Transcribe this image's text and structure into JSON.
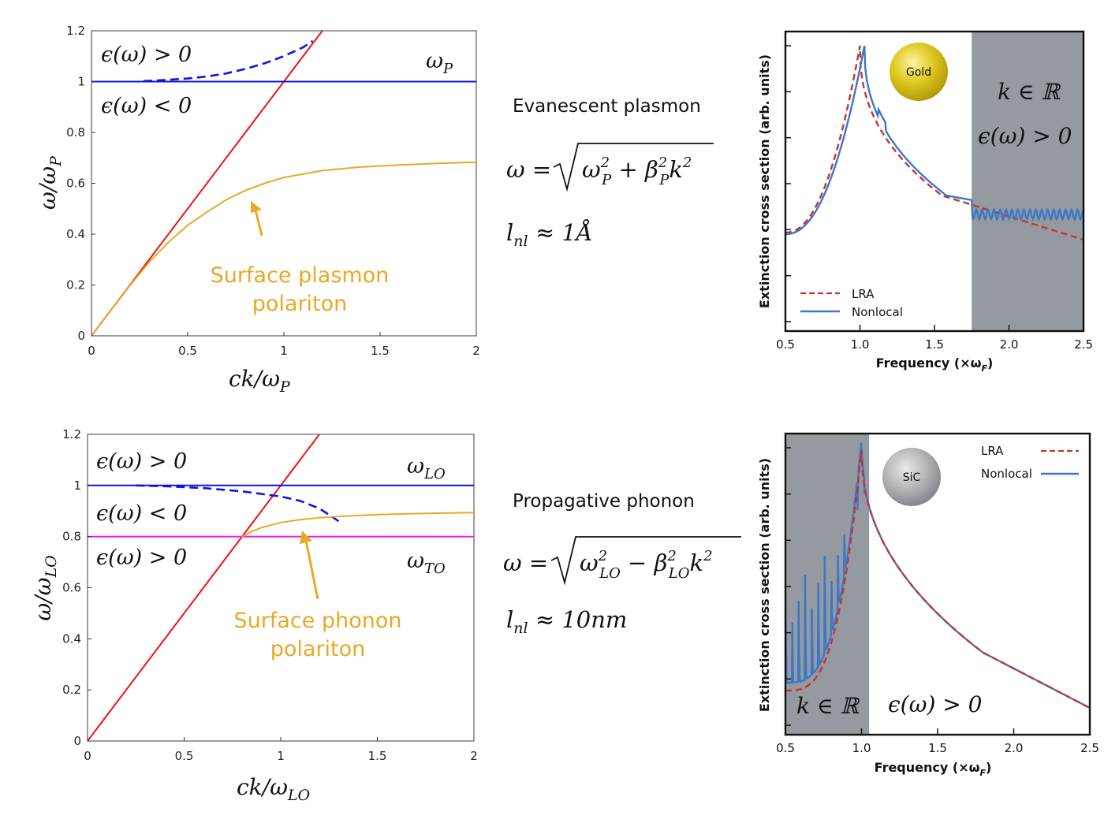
{
  "colors": {
    "red": "#ee1111",
    "blue": "#0a14e6",
    "orange": "#e9a825",
    "magenta": "#f01cf0",
    "lra": "#c8322f",
    "nonlocal": "#3b78c8",
    "shade": "#959aa0",
    "gold": "#d8c21d",
    "sic": "#a9abae"
  },
  "chart_data": [
    {
      "id": "plasmon_dispersion",
      "type": "line",
      "xlabel": "ck/ω_P",
      "ylabel": "ω/ω_P",
      "xlim": [
        0,
        2
      ],
      "ylim": [
        0,
        1.2
      ],
      "xticks": [
        "0",
        "0.5",
        "1",
        "1.5",
        "2"
      ],
      "yticks": [
        "0",
        "0.2",
        "0.4",
        "0.6",
        "0.8",
        "1",
        "1.2"
      ],
      "region_labels": {
        "above": "ϵ(ω) > 0",
        "below": "ϵ(ω) < 0",
        "line": "ω_P"
      },
      "annotation": {
        "line1": "Surface plasmon",
        "line2": "polariton"
      },
      "series": [
        {
          "name": "light line",
          "color": "red",
          "x": [
            0,
            1.2
          ],
          "y": [
            0,
            1.2
          ]
        },
        {
          "name": "ω_P",
          "color": "blue",
          "x": [
            0,
            2
          ],
          "y": [
            1,
            1
          ]
        },
        {
          "name": "bulk plasmon",
          "color": "blue",
          "dashed": true,
          "x": [
            0.27,
            0.4,
            0.5,
            0.6,
            0.7,
            0.8,
            0.9,
            1.0,
            1.1,
            1.15
          ],
          "y": [
            1.002,
            1.007,
            1.012,
            1.02,
            1.032,
            1.05,
            1.072,
            1.1,
            1.135,
            1.16
          ]
        },
        {
          "name": "surface plasmon polariton",
          "color": "orange",
          "x": [
            0,
            0.1,
            0.2,
            0.3,
            0.4,
            0.5,
            0.6,
            0.7,
            0.8,
            0.9,
            1.0,
            1.2,
            1.4,
            1.6,
            1.8,
            2.0
          ],
          "y": [
            0,
            0.1,
            0.198,
            0.29,
            0.368,
            0.435,
            0.487,
            0.535,
            0.572,
            0.6,
            0.623,
            0.65,
            0.664,
            0.672,
            0.678,
            0.683
          ]
        }
      ]
    },
    {
      "id": "phonon_dispersion",
      "type": "line",
      "xlabel": "ck/ω_LO",
      "ylabel": "ω/ω_LO",
      "xlim": [
        0,
        2
      ],
      "ylim": [
        0,
        1.2
      ],
      "xticks": [
        "0",
        "0.5",
        "1",
        "1.5",
        "2"
      ],
      "yticks": [
        "0",
        "0.2",
        "0.4",
        "0.6",
        "0.8",
        "1",
        "1.2"
      ],
      "region_labels": {
        "top": "ϵ(ω) > 0",
        "middle": "ϵ(ω) < 0",
        "bottom": "ϵ(ω) > 0",
        "lo": "ω_LO",
        "to": "ω_TO"
      },
      "annotation": {
        "line1": "Surface phonon",
        "line2": "polariton"
      },
      "series": [
        {
          "name": "light line",
          "color": "red",
          "x": [
            0,
            1.2
          ],
          "y": [
            0,
            1.2
          ]
        },
        {
          "name": "ω_LO",
          "color": "blue",
          "x": [
            0,
            2
          ],
          "y": [
            1,
            1
          ]
        },
        {
          "name": "ω_TO",
          "color": "magenta",
          "x": [
            0,
            2
          ],
          "y": [
            0.8,
            0.8
          ]
        },
        {
          "name": "bulk phonon",
          "color": "blue",
          "dashed": true,
          "x": [
            0.25,
            0.4,
            0.6,
            0.8,
            1.0,
            1.1,
            1.2,
            1.3
          ],
          "y": [
            1.0,
            0.997,
            0.99,
            0.977,
            0.957,
            0.94,
            0.91,
            0.86
          ]
        },
        {
          "name": "surface phonon polariton",
          "color": "orange",
          "x": [
            0.8,
            0.85,
            0.9,
            1.0,
            1.1,
            1.2,
            1.3,
            1.5,
            1.7,
            2.0
          ],
          "y": [
            0.8,
            0.82,
            0.835,
            0.855,
            0.866,
            0.874,
            0.879,
            0.886,
            0.89,
            0.894
          ]
        }
      ]
    },
    {
      "id": "gold_extinction",
      "type": "line",
      "xlabel": "Frequency (×ω",
      "xlabel_sub": "F",
      "ylabel": "Extinction cross section (arb. units)",
      "xlim": [
        0.5,
        2.5
      ],
      "xticks": [
        "0.5",
        "1.0",
        "1.5",
        "2.0",
        "2.5"
      ],
      "shaded_x": [
        1.75,
        2.5
      ],
      "sphere_label": "Gold",
      "region_labels": {
        "k": "k ∈ ℝ",
        "eps": "ϵ(ω) > 0"
      },
      "legend": {
        "lra": "LRA",
        "nonlocal": "Nonlocal"
      },
      "series": [
        {
          "name": "LRA",
          "peak": 1.0
        },
        {
          "name": "Nonlocal",
          "peak": 1.03
        }
      ]
    },
    {
      "id": "sic_extinction",
      "type": "line",
      "xlabel": "Frequency (×ω",
      "xlabel_sub": "F",
      "ylabel": "Extinction cross section (arb. units)",
      "xlim": [
        0.5,
        2.5
      ],
      "xticks": [
        "0.5",
        "1.0",
        "1.5",
        "2.0",
        "2.5"
      ],
      "shaded_x": [
        0.5,
        1.05
      ],
      "sphere_label": "SiC",
      "region_labels": {
        "k": "k ∈ ℝ",
        "eps": "ϵ(ω) > 0"
      },
      "legend": {
        "lra": "LRA",
        "nonlocal": "Nonlocal"
      },
      "series": [
        {
          "name": "LRA",
          "peak": 1.0
        },
        {
          "name": "Nonlocal",
          "peak": 1.0
        }
      ]
    }
  ],
  "middle": {
    "plasmon_title": "Evanescent plasmon",
    "plasmon_formula": "ω = √(ω_P² + β_P² k²)",
    "plasmon_lnl": "l_nl ≈ 1Å",
    "phonon_title": "Propagative phonon",
    "phonon_formula": "ω = √(ω_LO² − β_LO² k²)",
    "phonon_lnl": "l_nl ≈ 10nm"
  }
}
